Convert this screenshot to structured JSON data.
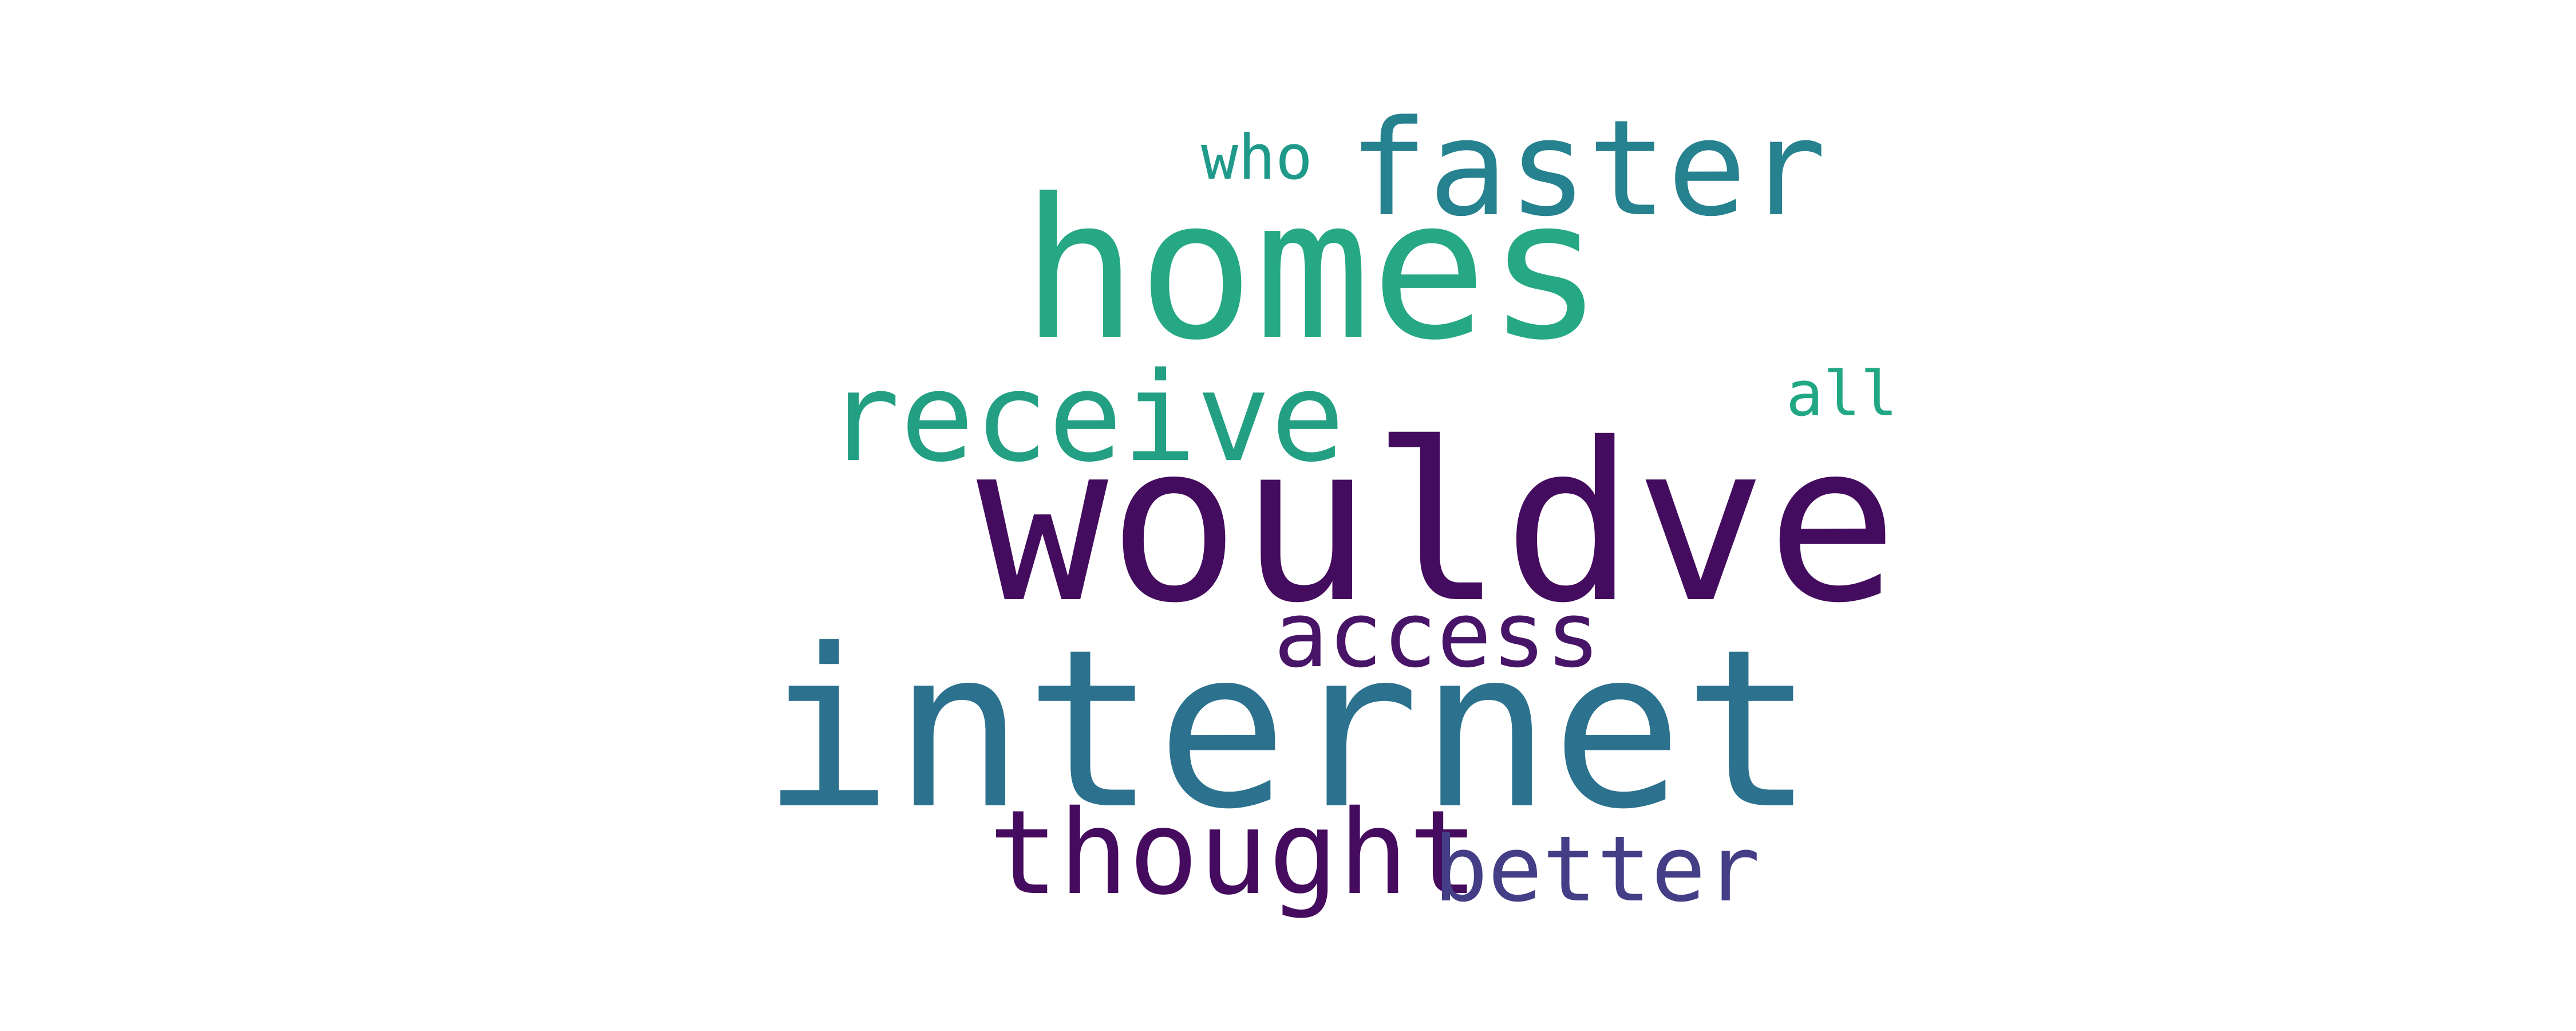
{
  "cloud": {
    "words": [
      {
        "id": "wouldve",
        "text": "wouldve",
        "color": "#440c5e"
      },
      {
        "id": "internet",
        "text": "internet",
        "color": "#2c728e"
      },
      {
        "id": "homes",
        "text": "homes",
        "color": "#27a884"
      },
      {
        "id": "faster",
        "text": "faster",
        "color": "#26828e"
      },
      {
        "id": "receive",
        "text": "receive",
        "color": "#23a083"
      },
      {
        "id": "thought",
        "text": "thought",
        "color": "#450b5e"
      },
      {
        "id": "access",
        "text": "access",
        "color": "#481467"
      },
      {
        "id": "better",
        "text": "better",
        "color": "#433e85"
      },
      {
        "id": "who",
        "text": "who",
        "color": "#1f9a8a"
      },
      {
        "id": "all",
        "text": "all",
        "color": "#22a784"
      }
    ]
  }
}
